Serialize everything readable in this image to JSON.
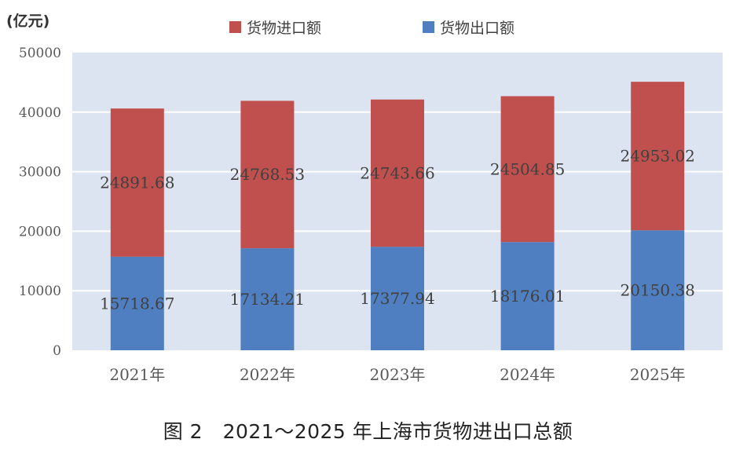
{
  "caption": "图 2　2021～2025 年上海市货物进出口总额",
  "chart_data": {
    "type": "bar",
    "stacked": true,
    "y_unit_label": "(亿元)",
    "categories": [
      "2021年",
      "2022年",
      "2023年",
      "2024年",
      "2025年"
    ],
    "ylim": [
      0,
      50000
    ],
    "yticks": [
      0,
      10000,
      20000,
      30000,
      40000,
      50000
    ],
    "grid": true,
    "legend_position": "top-center",
    "plot_background": "#dde4f1",
    "series": [
      {
        "name": "货物出口额",
        "color": "#4f7fc1",
        "values": [
          15718.67,
          17134.21,
          17377.94,
          18176.01,
          20150.38
        ],
        "labels": [
          "15718.67",
          "17134.21",
          "17377.94",
          "18176.01",
          "20150.38"
        ]
      },
      {
        "name": "货物进口额",
        "color": "#c0504d",
        "values": [
          24891.68,
          24768.53,
          24743.66,
          24504.85,
          24953.02
        ],
        "labels": [
          "24891.68",
          "24768.53",
          "24743.66",
          "24504.85",
          "24953.02"
        ]
      }
    ],
    "legend_order": [
      1,
      0
    ]
  }
}
